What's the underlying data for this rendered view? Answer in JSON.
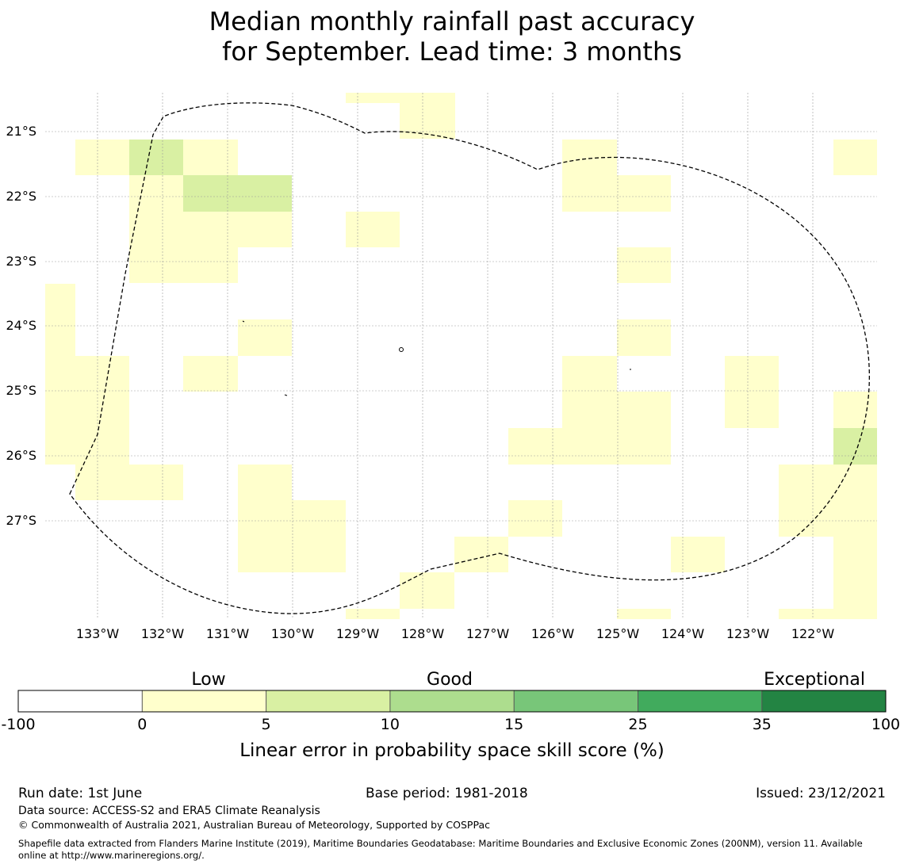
{
  "title": {
    "line1": "Median monthly rainfall past accuracy",
    "line2": "for September. Lead time: 3 months"
  },
  "map": {
    "lat_labels": [
      "21°S",
      "22°S",
      "23°S",
      "24°S",
      "25°S",
      "26°S",
      "27°S"
    ],
    "lon_labels": [
      "133°W",
      "132°W",
      "131°W",
      "130°W",
      "129°W",
      "128°W",
      "127°W",
      "126°W",
      "125°W",
      "124°W",
      "123°W",
      "122°W"
    ],
    "colors": {
      "0-5": "#ffffcc",
      "5-10": "#d9f0a3",
      "10-15": "#addd8e",
      "15-25": "#78c679",
      "25-35": "#41ab5d",
      "35-100": "#238443"
    }
  },
  "legend": {
    "category_labels": [
      "Low",
      "Good",
      "Exceptional"
    ],
    "ticks": [
      "-100",
      "0",
      "5",
      "10",
      "15",
      "25",
      "35",
      "100"
    ],
    "colors": [
      "#ffffff",
      "#ffffcc",
      "#d9f0a3",
      "#addd8e",
      "#78c679",
      "#41ab5d",
      "#238443"
    ],
    "axis_label": "Linear error in probability space skill score (%)"
  },
  "footer": {
    "run_date": "Run date: 1st June",
    "base_period": "Base period: 1981-2018",
    "issued": "Issued: 23/12/2021",
    "data_source": "Data source: ACCESS-S2 and ERA5 Climate Reanalysis",
    "copyright": "© Commonwealth of Australia 2021, Australian Bureau of Meteorology, Supported by COSPPac",
    "shapefile_line1": "Shapefile data extracted from Flanders Marine Institute (2019), Maritime Boundaries Geodatabase: Maritime Boundaries and Exclusive Economic Zones (200NM), version 11. Available",
    "shapefile_line2": "online at http://www.marineregions.org/."
  }
}
